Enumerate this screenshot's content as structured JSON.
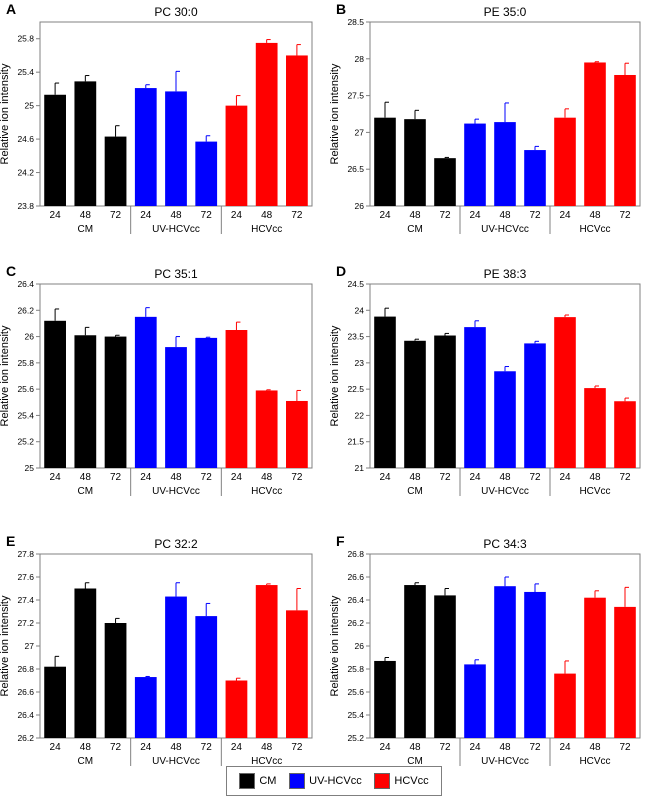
{
  "chart_data": [
    {
      "type": "bar",
      "panel_letter": "A",
      "title": "PC 30:0",
      "ylabel": "Relative ion intensity",
      "xlabel": "",
      "ylim": [
        23.8,
        26.0
      ],
      "yticks": [
        "23.8",
        "24.2",
        "24.6",
        "25",
        "25.4",
        "25.8"
      ],
      "yticks_values": [
        23.8,
        24.2,
        24.6,
        25.0,
        25.4,
        25.8
      ],
      "categories": [
        "24",
        "48",
        "72"
      ],
      "groups": [
        "CM",
        "UV-HCVcc",
        "HCVcc"
      ],
      "series": [
        {
          "group": "CM",
          "values": [
            25.13,
            25.29,
            24.63
          ],
          "errors": [
            0.14,
            0.07,
            0.13
          ]
        },
        {
          "group": "UV-HCVcc",
          "values": [
            25.21,
            25.17,
            24.57
          ],
          "errors": [
            0.04,
            0.24,
            0.07
          ]
        },
        {
          "group": "HCVcc",
          "values": [
            25.0,
            25.75,
            25.6
          ],
          "errors": [
            0.12,
            0.04,
            0.13
          ]
        }
      ]
    },
    {
      "type": "bar",
      "panel_letter": "B",
      "title": "PE 35:0",
      "ylabel": "Relative ion intensity",
      "xlabel": "",
      "ylim": [
        26.0,
        28.5
      ],
      "yticks": [
        "26",
        "26.5",
        "27",
        "27.5",
        "28",
        "28.5"
      ],
      "yticks_values": [
        26.0,
        26.5,
        27.0,
        27.5,
        28.0,
        28.5
      ],
      "categories": [
        "24",
        "48",
        "72"
      ],
      "groups": [
        "CM",
        "UV-HCVcc",
        "HCVcc"
      ],
      "series": [
        {
          "group": "CM",
          "values": [
            27.2,
            27.18,
            26.65
          ],
          "errors": [
            0.21,
            0.12,
            0.01
          ]
        },
        {
          "group": "UV-HCVcc",
          "values": [
            27.12,
            27.14,
            26.76
          ],
          "errors": [
            0.06,
            0.26,
            0.05
          ]
        },
        {
          "group": "HCVcc",
          "values": [
            27.2,
            27.95,
            27.78
          ],
          "errors": [
            0.12,
            0.01,
            0.16
          ]
        }
      ]
    },
    {
      "type": "bar",
      "panel_letter": "C",
      "title": "PC 35:1",
      "ylabel": "Relative ion intensity",
      "xlabel": "",
      "ylim": [
        25.0,
        26.4
      ],
      "yticks": [
        "25",
        "25.2",
        "25.4",
        "25.6",
        "25.8",
        "26",
        "26.2",
        "26.4"
      ],
      "yticks_values": [
        25.0,
        25.2,
        25.4,
        25.6,
        25.8,
        26.0,
        26.2,
        26.4
      ],
      "categories": [
        "24",
        "48",
        "72"
      ],
      "groups": [
        "CM",
        "UV-HCVcc",
        "HCVcc"
      ],
      "series": [
        {
          "group": "CM",
          "values": [
            26.12,
            26.01,
            26.0
          ],
          "errors": [
            0.09,
            0.06,
            0.01
          ]
        },
        {
          "group": "UV-HCVcc",
          "values": [
            26.15,
            25.92,
            25.99
          ],
          "errors": [
            0.07,
            0.08,
            0.005
          ]
        },
        {
          "group": "HCVcc",
          "values": [
            26.05,
            25.59,
            25.51
          ],
          "errors": [
            0.06,
            0.005,
            0.08
          ]
        }
      ]
    },
    {
      "type": "bar",
      "panel_letter": "D",
      "title": "PE 38:3",
      "ylabel": "Relative ion intensity",
      "xlabel": "",
      "ylim": [
        21.0,
        24.5
      ],
      "yticks": [
        "21",
        "21.5",
        "22",
        "22.5",
        "23",
        "23.5",
        "24",
        "24.5"
      ],
      "yticks_values": [
        21.0,
        21.5,
        22.0,
        22.5,
        23.0,
        23.5,
        24.0,
        24.5
      ],
      "categories": [
        "24",
        "48",
        "72"
      ],
      "groups": [
        "CM",
        "UV-HCVcc",
        "HCVcc"
      ],
      "series": [
        {
          "group": "CM",
          "values": [
            23.88,
            23.42,
            23.52
          ],
          "errors": [
            0.16,
            0.03,
            0.04
          ]
        },
        {
          "group": "UV-HCVcc",
          "values": [
            23.68,
            22.84,
            23.37
          ],
          "errors": [
            0.12,
            0.09,
            0.04
          ]
        },
        {
          "group": "HCVcc",
          "values": [
            23.87,
            22.52,
            22.27
          ],
          "errors": [
            0.04,
            0.04,
            0.06
          ]
        }
      ]
    },
    {
      "type": "bar",
      "panel_letter": "E",
      "title": "PC 32:2",
      "ylabel": "Relative ion intensity",
      "xlabel": "",
      "ylim": [
        26.2,
        27.8
      ],
      "yticks": [
        "26.2",
        "26.4",
        "26.6",
        "26.8",
        "27",
        "27.2",
        "27.4",
        "27.6",
        "27.8"
      ],
      "yticks_values": [
        26.2,
        26.4,
        26.6,
        26.8,
        27.0,
        27.2,
        27.4,
        27.6,
        27.8
      ],
      "categories": [
        "24",
        "48",
        "72"
      ],
      "groups": [
        "CM",
        "UV-HCVcc",
        "HCVcc"
      ],
      "series": [
        {
          "group": "CM",
          "values": [
            26.82,
            27.5,
            27.2
          ],
          "errors": [
            0.09,
            0.05,
            0.04
          ]
        },
        {
          "group": "UV-HCVcc",
          "values": [
            26.73,
            27.43,
            27.26
          ],
          "errors": [
            0.005,
            0.12,
            0.11
          ]
        },
        {
          "group": "HCVcc",
          "values": [
            26.7,
            27.53,
            27.31
          ],
          "errors": [
            0.02,
            0.01,
            0.19
          ]
        }
      ]
    },
    {
      "type": "bar",
      "panel_letter": "F",
      "title": "PC 34:3",
      "ylabel": "Relative ion intensity",
      "xlabel": "",
      "ylim": [
        25.2,
        26.8
      ],
      "yticks": [
        "25.2",
        "25.4",
        "25.6",
        "25.8",
        "26",
        "26.2",
        "26.4",
        "26.6",
        "26.8"
      ],
      "yticks_values": [
        25.2,
        25.4,
        25.6,
        25.8,
        26.0,
        26.2,
        26.4,
        26.6,
        26.8
      ],
      "categories": [
        "24",
        "48",
        "72"
      ],
      "groups": [
        "CM",
        "UV-HCVcc",
        "HCVcc"
      ],
      "series": [
        {
          "group": "CM",
          "values": [
            25.87,
            26.53,
            26.44
          ],
          "errors": [
            0.03,
            0.02,
            0.06
          ]
        },
        {
          "group": "UV-HCVcc",
          "values": [
            25.84,
            26.52,
            26.47
          ],
          "errors": [
            0.04,
            0.08,
            0.07
          ]
        },
        {
          "group": "HCVcc",
          "values": [
            25.76,
            26.42,
            26.34
          ],
          "errors": [
            0.11,
            0.06,
            0.17
          ]
        }
      ]
    }
  ],
  "legend": [
    {
      "label": "CM",
      "color": "#000000"
    },
    {
      "label": "UV-HCVcc",
      "color": "#0000ff"
    },
    {
      "label": "HCVcc",
      "color": "#ff0000"
    }
  ],
  "colors": {
    "CM": "#000000",
    "UV-HCVcc": "#0000ff",
    "HCVcc": "#ff0000"
  }
}
